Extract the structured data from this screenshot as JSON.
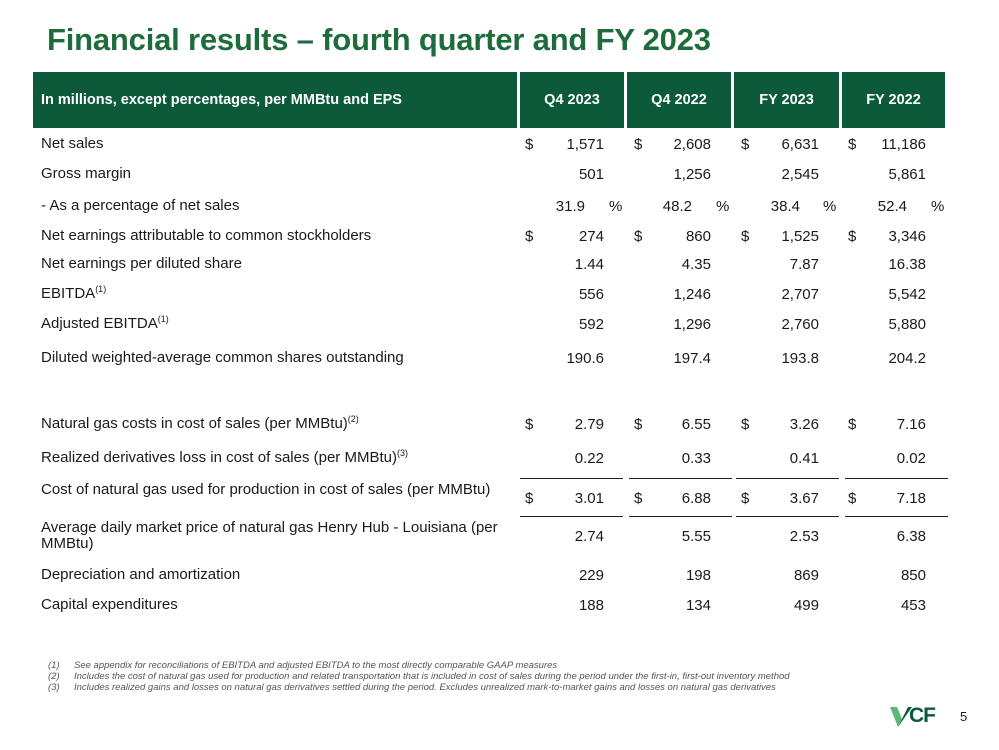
{
  "title": "Financial results – fourth quarter and FY 2023",
  "table": {
    "header": [
      "In millions, except percentages, per MMBtu and EPS",
      "Q4 2023",
      "Q4 2022",
      "FY 2023",
      "FY 2022"
    ],
    "rows": [
      {
        "label": "Net sales",
        "sup": "",
        "dollar": true,
        "values": [
          "1,571",
          "2,608",
          "6,631",
          "11,186"
        ],
        "pct": false
      },
      {
        "label": "Gross margin",
        "sup": "",
        "dollar": false,
        "values": [
          "501",
          "1,256",
          "2,545",
          "5,861"
        ],
        "pct": false
      },
      {
        "label": " - As a percentage of net sales",
        "sup": "",
        "dollar": false,
        "values": [
          "31.9",
          "48.2",
          "38.4",
          "52.4"
        ],
        "pct": true,
        "pct_symbol": "%"
      },
      {
        "label": "Net earnings attributable to common stockholders",
        "sup": "",
        "dollar": true,
        "values": [
          "274",
          "860",
          "1,525",
          "3,346"
        ],
        "pct": false
      },
      {
        "label": "Net earnings per diluted share",
        "sup": "",
        "dollar": false,
        "values": [
          "1.44",
          "4.35",
          "7.87",
          "16.38"
        ],
        "pct": false
      },
      {
        "label": "EBITDA",
        "sup": "(1)",
        "dollar": false,
        "values": [
          "556",
          "1,246",
          "2,707",
          "5,542"
        ],
        "pct": false
      },
      {
        "label": "Adjusted EBITDA",
        "sup": "(1)",
        "dollar": false,
        "values": [
          "592",
          "1,296",
          "2,760",
          "5,880"
        ],
        "pct": false
      },
      {
        "label": "Diluted weighted-average common shares outstanding",
        "sup": "",
        "dollar": false,
        "values": [
          "190.6",
          "197.4",
          "193.8",
          "204.2"
        ],
        "pct": false
      },
      {
        "label": "Natural gas costs in cost of sales (per MMBtu)",
        "sup": "(2)",
        "dollar": true,
        "values": [
          "2.79",
          "6.55",
          "3.26",
          "7.16"
        ],
        "pct": false
      },
      {
        "label": "Realized derivatives loss in cost of sales (per MMBtu)",
        "sup": "(3)",
        "dollar": false,
        "values": [
          "0.22",
          "0.33",
          "0.41",
          "0.02"
        ],
        "pct": false
      },
      {
        "label": "Cost of natural gas used for production in cost of sales (per MMBtu)",
        "sup": "",
        "dollar": true,
        "values": [
          "3.01",
          "6.88",
          "3.67",
          "7.18"
        ],
        "pct": false
      },
      {
        "label": "Average daily market price of natural gas Henry Hub - Louisiana (per MMBtu)",
        "sup": "",
        "dollar": false,
        "values": [
          "2.74",
          "5.55",
          "2.53",
          "6.38"
        ],
        "pct": false
      },
      {
        "label": "Depreciation and amortization",
        "sup": "",
        "dollar": false,
        "values": [
          "229",
          "198",
          "869",
          "850"
        ],
        "pct": false
      },
      {
        "label": "Capital expenditures",
        "sup": "",
        "dollar": false,
        "values": [
          "188",
          "134",
          "499",
          "453"
        ],
        "pct": false
      }
    ],
    "dollar_symbol": "$"
  },
  "footnotes": [
    {
      "num": "(1)",
      "text": "See appendix for reconciliations of EBITDA and adjusted EBITDA to the most directly comparable GAAP measures"
    },
    {
      "num": "(2)",
      "text": "Includes the cost of natural gas used for production and related transportation that is included in cost of sales during the period under the first-in, first-out inventory method"
    },
    {
      "num": "(3)",
      "text": "Includes realized gains and losses on natural gas derivatives settled during the period. Excludes unrealized mark-to-market gains and losses on natural gas derivatives"
    }
  ],
  "logo": {
    "text": "CF",
    "color": "#0d5a3a",
    "accent": "#5cb87a"
  },
  "page_number": "5",
  "colors": {
    "title": "#1e6b3c",
    "header_bg": "#0d5a3a"
  }
}
